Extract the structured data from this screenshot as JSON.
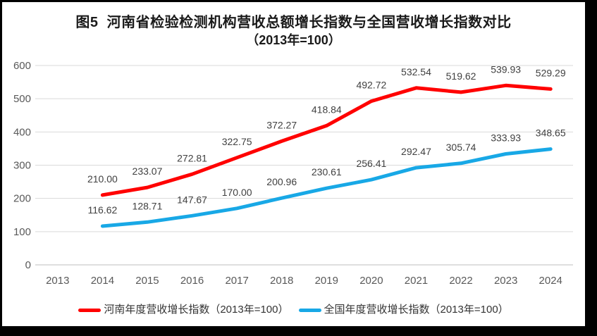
{
  "chart_data": {
    "type": "line",
    "title": "图5  河南省检验检测机构营收总额增长指数与全国营收增长指数对比",
    "subtitle": "（2013年=100）",
    "categories": [
      "2013",
      "2014",
      "2015",
      "2016",
      "2017",
      "2018",
      "2019",
      "2020",
      "2021",
      "2022",
      "2023",
      "2024"
    ],
    "xlabel": "",
    "ylabel": "",
    "ylim": [
      0,
      600
    ],
    "ytick_step": 100,
    "grid": true,
    "legend_position": "bottom",
    "label_decimals": 2,
    "colors": {
      "gridline": "#D9D9D9",
      "axis_line": "#BFBFBF",
      "tick_text": "#595959",
      "data_label_text": "#404040",
      "frame_border": "#000000"
    },
    "series": [
      {
        "name": "河南年度营收增长指数（2013年=100）",
        "slug": "henan",
        "color": "#FF0000",
        "start_category": "2014",
        "values": [
          210.0,
          233.07,
          272.81,
          322.75,
          372.27,
          418.84,
          492.72,
          532.54,
          519.62,
          539.93,
          529.29
        ]
      },
      {
        "name": "全国年度营收增长指数（2013年=100）",
        "slug": "national",
        "color": "#18A8E6",
        "start_category": "2014",
        "values": [
          116.62,
          128.71,
          147.67,
          170.0,
          200.96,
          230.61,
          256.41,
          292.47,
          305.74,
          333.93,
          348.65
        ]
      }
    ]
  }
}
